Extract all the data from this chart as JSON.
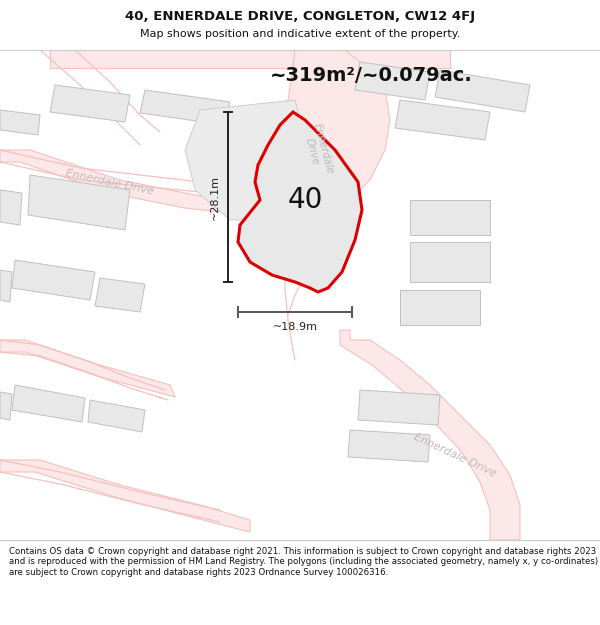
{
  "title": "40, ENNERDALE DRIVE, CONGLETON, CW12 4FJ",
  "subtitle": "Map shows position and indicative extent of the property.",
  "area_text": "~319m²/~0.079ac.",
  "label_40": "40",
  "dim_height": "~28.1m",
  "dim_width": "~18.9m",
  "footer": "Contains OS data © Crown copyright and database right 2021. This information is subject to Crown copyright and database rights 2023 and is reproduced with the permission of HM Land Registry. The polygons (including the associated geometry, namely x, y co-ordinates) are subject to Crown copyright and database rights 2023 Ordnance Survey 100026316.",
  "bg_color": "#ffffff",
  "road_outline_color": "#f5c0c0",
  "road_fill_color": "#fce8e8",
  "building_fill": "#e8e8e8",
  "building_edge": "#c0c0c0",
  "plot_fill": "#e0e0e0",
  "plot_edge": "#dd0000",
  "road_label_color": "#c0b8b8",
  "dim_color": "#222222",
  "area_color": "#111111",
  "title_color": "#111111",
  "footer_color": "#111111",
  "separator_color": "#cccccc"
}
